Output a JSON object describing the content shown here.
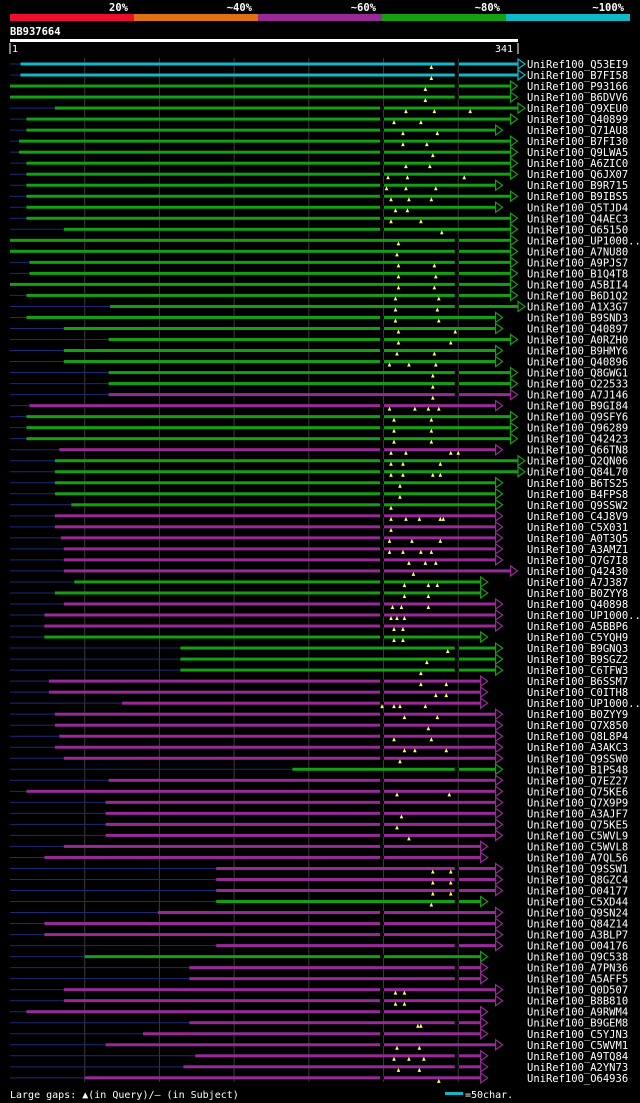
{
  "chart_data": {
    "type": "alignment-overview",
    "query_name": "BB937664",
    "query_start": "1",
    "query_end": "341",
    "legend": [
      {
        "label": "20%",
        "color": "#e8102e"
      },
      {
        "label": "~40%",
        "color": "#e07010"
      },
      {
        "label": "~60%",
        "color": "#982a98"
      },
      {
        "label": "~80%",
        "color": "#13a013"
      },
      {
        "label": "~100%",
        "color": "#10b8c8"
      }
    ],
    "footer_left": "Large gaps: ▲(in Query)/– (in Subject)",
    "footer_right": "=50char.",
    "scale_chars": 50,
    "hits": [
      {
        "name": "UniRef100_Q53EI9",
        "start": 8,
        "end": 341,
        "color": "cyan",
        "gap": 300,
        "marks": [
          283
        ]
      },
      {
        "name": "UniRef100_B7FI58",
        "start": 8,
        "end": 341,
        "color": "cyan",
        "gap": 300,
        "marks": [
          283
        ]
      },
      {
        "name": "UniRef100_P93166",
        "start": -25,
        "end": 336,
        "color": "green",
        "gap": 300,
        "marks": [
          279
        ]
      },
      {
        "name": "UniRef100_B6DVV6",
        "start": -25,
        "end": 336,
        "color": "green",
        "gap": 300,
        "marks": [
          279
        ]
      },
      {
        "name": "UniRef100_Q9XEU0",
        "start": 31,
        "end": 341,
        "color": "green",
        "gap": 250,
        "marks": [
          266,
          285,
          309
        ]
      },
      {
        "name": "UniRef100_Q40899",
        "start": 12,
        "end": 336,
        "color": "green",
        "gap": 250,
        "marks": [
          258,
          276
        ]
      },
      {
        "name": "UniRef100_Q71AU8",
        "start": 12,
        "end": 326,
        "color": "green",
        "gap": 250,
        "marks": [
          264,
          287
        ]
      },
      {
        "name": "UniRef100_B7FI30",
        "start": 7,
        "end": 336,
        "color": "green",
        "gap": 250,
        "marks": [
          264,
          280
        ]
      },
      {
        "name": "UniRef100_Q9LWA5",
        "start": 7,
        "end": 336,
        "color": "green",
        "gap": 250,
        "marks": [
          284
        ]
      },
      {
        "name": "UniRef100_A6ZIC0",
        "start": 12,
        "end": 336,
        "color": "green",
        "gap": 250,
        "marks": [
          266,
          282
        ]
      },
      {
        "name": "UniRef100_Q6JX07",
        "start": 12,
        "end": 336,
        "color": "green",
        "gap": 250,
        "marks": [
          254,
          267,
          305
        ]
      },
      {
        "name": "UniRef100_B9R715",
        "start": 12,
        "end": 326,
        "color": "green",
        "gap": 250,
        "marks": [
          253,
          266,
          286
        ]
      },
      {
        "name": "UniRef100_B9IBS5",
        "start": 12,
        "end": 336,
        "color": "green",
        "gap": 250,
        "marks": [
          256,
          268,
          283
        ]
      },
      {
        "name": "UniRef100_Q5TJD4",
        "start": 12,
        "end": 326,
        "color": "green",
        "gap": 250,
        "marks": [
          259,
          267
        ]
      },
      {
        "name": "UniRef100_Q4AEC3",
        "start": 12,
        "end": 336,
        "color": "green",
        "gap": 250,
        "marks": [
          256,
          276
        ]
      },
      {
        "name": "UniRef100_O65150",
        "start": 37,
        "end": 336,
        "color": "green",
        "gap": 250,
        "marks": [
          290
        ]
      },
      {
        "name": "UniRef100_UP1000...",
        "start": -3,
        "end": 336,
        "color": "green",
        "gap": 300,
        "marks": [
          261
        ]
      },
      {
        "name": "UniRef100_A7NU80",
        "start": -3,
        "end": 336,
        "color": "green",
        "gap": 300,
        "marks": [
          260
        ]
      },
      {
        "name": "UniRef100_A9PJS7",
        "start": 14,
        "end": 336,
        "color": "green",
        "gap": 300,
        "marks": [
          261,
          285
        ]
      },
      {
        "name": "UniRef100_B1Q4T8",
        "start": 14,
        "end": 336,
        "color": "green",
        "gap": 300,
        "marks": [
          261,
          286
        ]
      },
      {
        "name": "UniRef100_A5BII4",
        "start": -3,
        "end": 336,
        "color": "green",
        "gap": 300,
        "marks": [
          261,
          285
        ]
      },
      {
        "name": "UniRef100_B6D1Q2",
        "start": 12,
        "end": 336,
        "color": "green",
        "gap": 300,
        "marks": [
          259,
          288
        ]
      },
      {
        "name": "UniRef100_A1X3G7",
        "start": 68,
        "end": 341,
        "color": "green",
        "gap": 300,
        "marks": [
          259,
          287
        ]
      },
      {
        "name": "UniRef100_B9SND3",
        "start": 12,
        "end": 326,
        "color": "green",
        "gap": 250,
        "marks": [
          259,
          288
        ]
      },
      {
        "name": "UniRef100_Q40897",
        "start": 37,
        "end": 326,
        "color": "green",
        "gap": 250,
        "marks": [
          261,
          299
        ]
      },
      {
        "name": "UniRef100_A0RZH0",
        "start": 67,
        "end": 336,
        "color": "green",
        "gap": 250,
        "marks": [
          261,
          296
        ]
      },
      {
        "name": "UniRef100_B9HMY6",
        "start": 37,
        "end": 326,
        "color": "green",
        "gap": 250,
        "marks": [
          260,
          285
        ]
      },
      {
        "name": "UniRef100_Q40896",
        "start": 37,
        "end": 326,
        "color": "green",
        "gap": 250,
        "marks": [
          255,
          268,
          286
        ]
      },
      {
        "name": "UniRef100_Q8GWG1",
        "start": 67,
        "end": 336,
        "color": "green",
        "gap": 300,
        "marks": [
          284
        ]
      },
      {
        "name": "UniRef100_O22533",
        "start": 67,
        "end": 336,
        "color": "green",
        "gap": 300,
        "marks": [
          284
        ]
      },
      {
        "name": "UniRef100_A7J146",
        "start": 67,
        "end": 336,
        "color": "purple",
        "gap": 300,
        "marks": [
          284
        ]
      },
      {
        "name": "UniRef100_B9GI84",
        "start": 14,
        "end": 326,
        "color": "purple",
        "gap": 250,
        "marks": [
          255,
          272,
          281,
          288
        ]
      },
      {
        "name": "UniRef100_Q9SFY6",
        "start": 12,
        "end": 336,
        "color": "green",
        "gap": 250,
        "marks": [
          258,
          283
        ]
      },
      {
        "name": "UniRef100_Q96289",
        "start": 12,
        "end": 336,
        "color": "green",
        "gap": 250,
        "marks": [
          258,
          283
        ]
      },
      {
        "name": "UniRef100_Q42423",
        "start": 12,
        "end": 336,
        "color": "green",
        "gap": 250,
        "marks": [
          258,
          283
        ]
      },
      {
        "name": "UniRef100_Q66TN8",
        "start": 34,
        "end": 326,
        "color": "purple",
        "gap": 250,
        "marks": [
          256,
          266,
          296,
          301
        ]
      },
      {
        "name": "UniRef100_Q2QN06",
        "start": 31,
        "end": 341,
        "color": "green",
        "gap": 250,
        "marks": [
          256,
          264,
          289
        ]
      },
      {
        "name": "UniRef100_Q84L70",
        "start": 31,
        "end": 341,
        "color": "green",
        "gap": 250,
        "marks": [
          256,
          264,
          284,
          289
        ]
      },
      {
        "name": "UniRef100_B6TS25",
        "start": 31,
        "end": 326,
        "color": "green",
        "gap": 250,
        "marks": [
          262
        ]
      },
      {
        "name": "UniRef100_B4FPS8",
        "start": 31,
        "end": 326,
        "color": "green",
        "gap": 250,
        "marks": [
          262
        ]
      },
      {
        "name": "UniRef100_Q9SSW2",
        "start": 42,
        "end": 326,
        "color": "green",
        "gap": 250,
        "marks": [
          256
        ]
      },
      {
        "name": "UniRef100_C4J8V9",
        "start": 31,
        "end": 326,
        "color": "purple",
        "gap": 250,
        "marks": [
          256,
          266,
          275,
          289,
          291
        ]
      },
      {
        "name": "UniRef100_C5X031",
        "start": 31,
        "end": 326,
        "color": "purple",
        "gap": 250,
        "marks": [
          256
        ]
      },
      {
        "name": "UniRef100_A0T3Q5",
        "start": 35,
        "end": 326,
        "color": "purple",
        "gap": 250,
        "marks": [
          255,
          270,
          289
        ]
      },
      {
        "name": "UniRef100_A3AMZ1",
        "start": 37,
        "end": 326,
        "color": "purple",
        "gap": 250,
        "marks": [
          255,
          264,
          276,
          283
        ]
      },
      {
        "name": "UniRef100_Q7G7I8",
        "start": 37,
        "end": 326,
        "color": "purple",
        "gap": 250,
        "marks": [
          268,
          279,
          286
        ]
      },
      {
        "name": "UniRef100_Q42430",
        "start": 37,
        "end": 336,
        "color": "purple",
        "gap": 250,
        "marks": [
          271
        ]
      },
      {
        "name": "UniRef100_A7J387",
        "start": 44,
        "end": 316,
        "color": "green",
        "gap": 250,
        "marks": [
          265,
          281,
          287
        ]
      },
      {
        "name": "UniRef100_B0ZYY8",
        "start": 31,
        "end": 316,
        "color": "green",
        "gap": 250,
        "marks": [
          265,
          281
        ]
      },
      {
        "name": "UniRef100_Q40898",
        "start": 37,
        "end": 326,
        "color": "purple",
        "gap": 250,
        "marks": [
          257,
          263,
          281
        ]
      },
      {
        "name": "UniRef100_UP1000...",
        "start": 24,
        "end": 326,
        "color": "purple",
        "gap": 250,
        "marks": [
          256,
          260,
          265
        ]
      },
      {
        "name": "UniRef100_A5BBP6",
        "start": 24,
        "end": 326,
        "color": "purple",
        "gap": 250,
        "marks": [
          258,
          264
        ]
      },
      {
        "name": "UniRef100_C5YQH9",
        "start": 24,
        "end": 316,
        "color": "green",
        "gap": 250,
        "marks": [
          258,
          264
        ]
      },
      {
        "name": "UniRef100_B9GNQ3",
        "start": 115,
        "end": 326,
        "color": "green",
        "gap": 300,
        "marks": [
          294
        ]
      },
      {
        "name": "UniRef100_B9SGZ2",
        "start": 115,
        "end": 326,
        "color": "green",
        "gap": 300,
        "marks": [
          280
        ]
      },
      {
        "name": "UniRef100_C6TFW3",
        "start": 115,
        "end": 326,
        "color": "green",
        "gap": 300,
        "marks": [
          276
        ]
      },
      {
        "name": "UniRef100_B6SSM7",
        "start": 27,
        "end": 316,
        "color": "purple",
        "gap": 250,
        "marks": [
          276,
          293
        ]
      },
      {
        "name": "UniRef100_C0ITH8",
        "start": 27,
        "end": 316,
        "color": "purple",
        "gap": 250,
        "marks": [
          286,
          293
        ]
      },
      {
        "name": "UniRef100_UP1000...",
        "start": 76,
        "end": 316,
        "color": "purple",
        "gap": 250,
        "marks": [
          250,
          258,
          262,
          279
        ]
      },
      {
        "name": "UniRef100_B0ZYY9",
        "start": 31,
        "end": 326,
        "color": "purple",
        "gap": 250,
        "marks": [
          265,
          287
        ]
      },
      {
        "name": "UniRef100_Q7X850",
        "start": 31,
        "end": 326,
        "color": "purple",
        "gap": 250,
        "marks": [
          281
        ]
      },
      {
        "name": "UniRef100_Q8L8P4",
        "start": 34,
        "end": 326,
        "color": "purple",
        "gap": 250,
        "marks": [
          258,
          283
        ]
      },
      {
        "name": "UniRef100_A3AKC3",
        "start": 31,
        "end": 326,
        "color": "purple",
        "gap": 250,
        "marks": [
          265,
          272,
          293
        ]
      },
      {
        "name": "UniRef100_Q9SSW0",
        "start": 37,
        "end": 326,
        "color": "purple",
        "gap": 250,
        "marks": [
          262
        ]
      },
      {
        "name": "UniRef100_B1PS48",
        "start": 190,
        "end": 326,
        "color": "green",
        "gap": 300,
        "marks": []
      },
      {
        "name": "UniRef100_Q7EZ27",
        "start": 67,
        "end": 326,
        "color": "purple",
        "gap": 250,
        "marks": []
      },
      {
        "name": "UniRef100_Q75KE6",
        "start": 12,
        "end": 326,
        "color": "purple",
        "gap": 250,
        "marks": [
          260,
          295
        ]
      },
      {
        "name": "UniRef100_Q7X9P9",
        "start": 65,
        "end": 326,
        "color": "purple",
        "gap": 250,
        "marks": []
      },
      {
        "name": "UniRef100_A3AJF7",
        "start": 65,
        "end": 326,
        "color": "purple",
        "gap": 250,
        "marks": [
          263
        ]
      },
      {
        "name": "UniRef100_Q75KE5",
        "start": 65,
        "end": 326,
        "color": "purple",
        "gap": 250,
        "marks": [
          260
        ]
      },
      {
        "name": "UniRef100_C5WVL9",
        "start": 65,
        "end": 326,
        "color": "purple",
        "gap": 250,
        "marks": [
          268
        ]
      },
      {
        "name": "UniRef100_C5WVL8",
        "start": 37,
        "end": 316,
        "color": "purple",
        "gap": 250,
        "marks": []
      },
      {
        "name": "UniRef100_A7QL56",
        "start": 24,
        "end": 316,
        "color": "purple",
        "gap": 250,
        "marks": []
      },
      {
        "name": "UniRef100_Q9SSW1",
        "start": 139,
        "end": 326,
        "color": "purple",
        "gap": 300,
        "marks": [
          284,
          296
        ]
      },
      {
        "name": "UniRef100_Q8GZC4",
        "start": 139,
        "end": 326,
        "color": "purple",
        "gap": 300,
        "marks": [
          284,
          296
        ]
      },
      {
        "name": "UniRef100_O04177",
        "start": 139,
        "end": 326,
        "color": "purple",
        "gap": 300,
        "marks": [
          284,
          296
        ]
      },
      {
        "name": "UniRef100_C5XD44",
        "start": 139,
        "end": 316,
        "color": "green",
        "gap": 300,
        "marks": [
          283
        ]
      },
      {
        "name": "UniRef100_Q9SN24",
        "start": 100,
        "end": 326,
        "color": "purple",
        "gap": 250,
        "marks": []
      },
      {
        "name": "UniRef100_Q84Z14",
        "start": 24,
        "end": 326,
        "color": "purple",
        "gap": 250,
        "marks": []
      },
      {
        "name": "UniRef100_A3BLP7",
        "start": 24,
        "end": 326,
        "color": "purple",
        "gap": 250,
        "marks": []
      },
      {
        "name": "UniRef100_O04176",
        "start": 139,
        "end": 326,
        "color": "purple",
        "gap": 300,
        "marks": []
      },
      {
        "name": "UniRef100_Q9C538",
        "start": 51,
        "end": 316,
        "color": "green",
        "gap": 250,
        "marks": []
      },
      {
        "name": "UniRef100_A7PN36",
        "start": 121,
        "end": 316,
        "color": "purple",
        "gap": 300,
        "marks": []
      },
      {
        "name": "UniRef100_A5AFF5",
        "start": 121,
        "end": 316,
        "color": "purple",
        "gap": 300,
        "marks": []
      },
      {
        "name": "UniRef100_Q0D507",
        "start": 37,
        "end": 326,
        "color": "purple",
        "gap": 250,
        "marks": [
          259,
          265
        ]
      },
      {
        "name": "UniRef100_B8B810",
        "start": 37,
        "end": 326,
        "color": "purple",
        "gap": 250,
        "marks": [
          259,
          265
        ]
      },
      {
        "name": "UniRef100_A9RWM4",
        "start": 12,
        "end": 316,
        "color": "purple",
        "gap": 250,
        "marks": []
      },
      {
        "name": "UniRef100_B9GEM8",
        "start": 121,
        "end": 316,
        "color": "purple",
        "gap": 300,
        "marks": [
          274,
          276
        ]
      },
      {
        "name": "UniRef100_C5YJN3",
        "start": 90,
        "end": 316,
        "color": "purple",
        "gap": 250,
        "marks": []
      },
      {
        "name": "UniRef100_C5WVM1",
        "start": 65,
        "end": 326,
        "color": "purple",
        "gap": 250,
        "marks": [
          260,
          275
        ]
      },
      {
        "name": "UniRef100_A9TQ84",
        "start": 125,
        "end": 316,
        "color": "purple",
        "gap": 300,
        "marks": [
          258,
          268,
          278
        ]
      },
      {
        "name": "UniRef100_A2YN73",
        "start": 117,
        "end": 316,
        "color": "purple",
        "gap": 300,
        "marks": [
          261,
          275
        ]
      },
      {
        "name": "UniRef100_O64936",
        "start": 51,
        "end": 316,
        "color": "purple",
        "gap": 250,
        "marks": [
          288
        ]
      }
    ]
  }
}
